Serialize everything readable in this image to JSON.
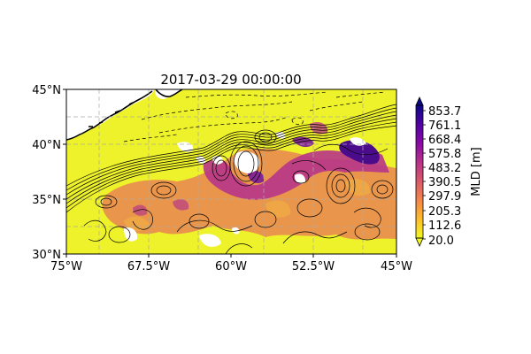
{
  "title": "2017-03-29 00:00:00",
  "map": {
    "lon_range": [
      -75,
      -45
    ],
    "lat_range": [
      30,
      45
    ],
    "x_ticks": [
      {
        "value": -75,
        "label": "75°W"
      },
      {
        "value": -67.5,
        "label": "67.5°W"
      },
      {
        "value": -60,
        "label": "60°W"
      },
      {
        "value": -52.5,
        "label": "52.5°W"
      },
      {
        "value": -45,
        "label": "45°W"
      }
    ],
    "y_ticks": [
      {
        "value": 30,
        "label": "30°N"
      },
      {
        "value": 35,
        "label": "35°N"
      },
      {
        "value": 40,
        "label": "40°N"
      },
      {
        "value": 45,
        "label": "45°N"
      }
    ],
    "gridlines": true
  },
  "colorbar": {
    "label": "MLD [m]",
    "ticks": [
      "853.7",
      "761.1",
      "668.4",
      "575.8",
      "483.2",
      "390.5",
      "297.9",
      "205.3",
      "112.6",
      "20.0"
    ],
    "colormap": "plasma_r",
    "colors": [
      "#0d0887",
      "#5302a3",
      "#8b0aa5",
      "#b83289",
      "#db5c68",
      "#f48849",
      "#febd2a",
      "#f0f921"
    ]
  },
  "colors": {
    "low_mld": "#eef22a",
    "mid_mld": "#e8904e",
    "high_mld": "#b7358a",
    "max_mld": "#4b0c8c",
    "land_and_nodata": "#ffffff",
    "contour": "#000000"
  }
}
